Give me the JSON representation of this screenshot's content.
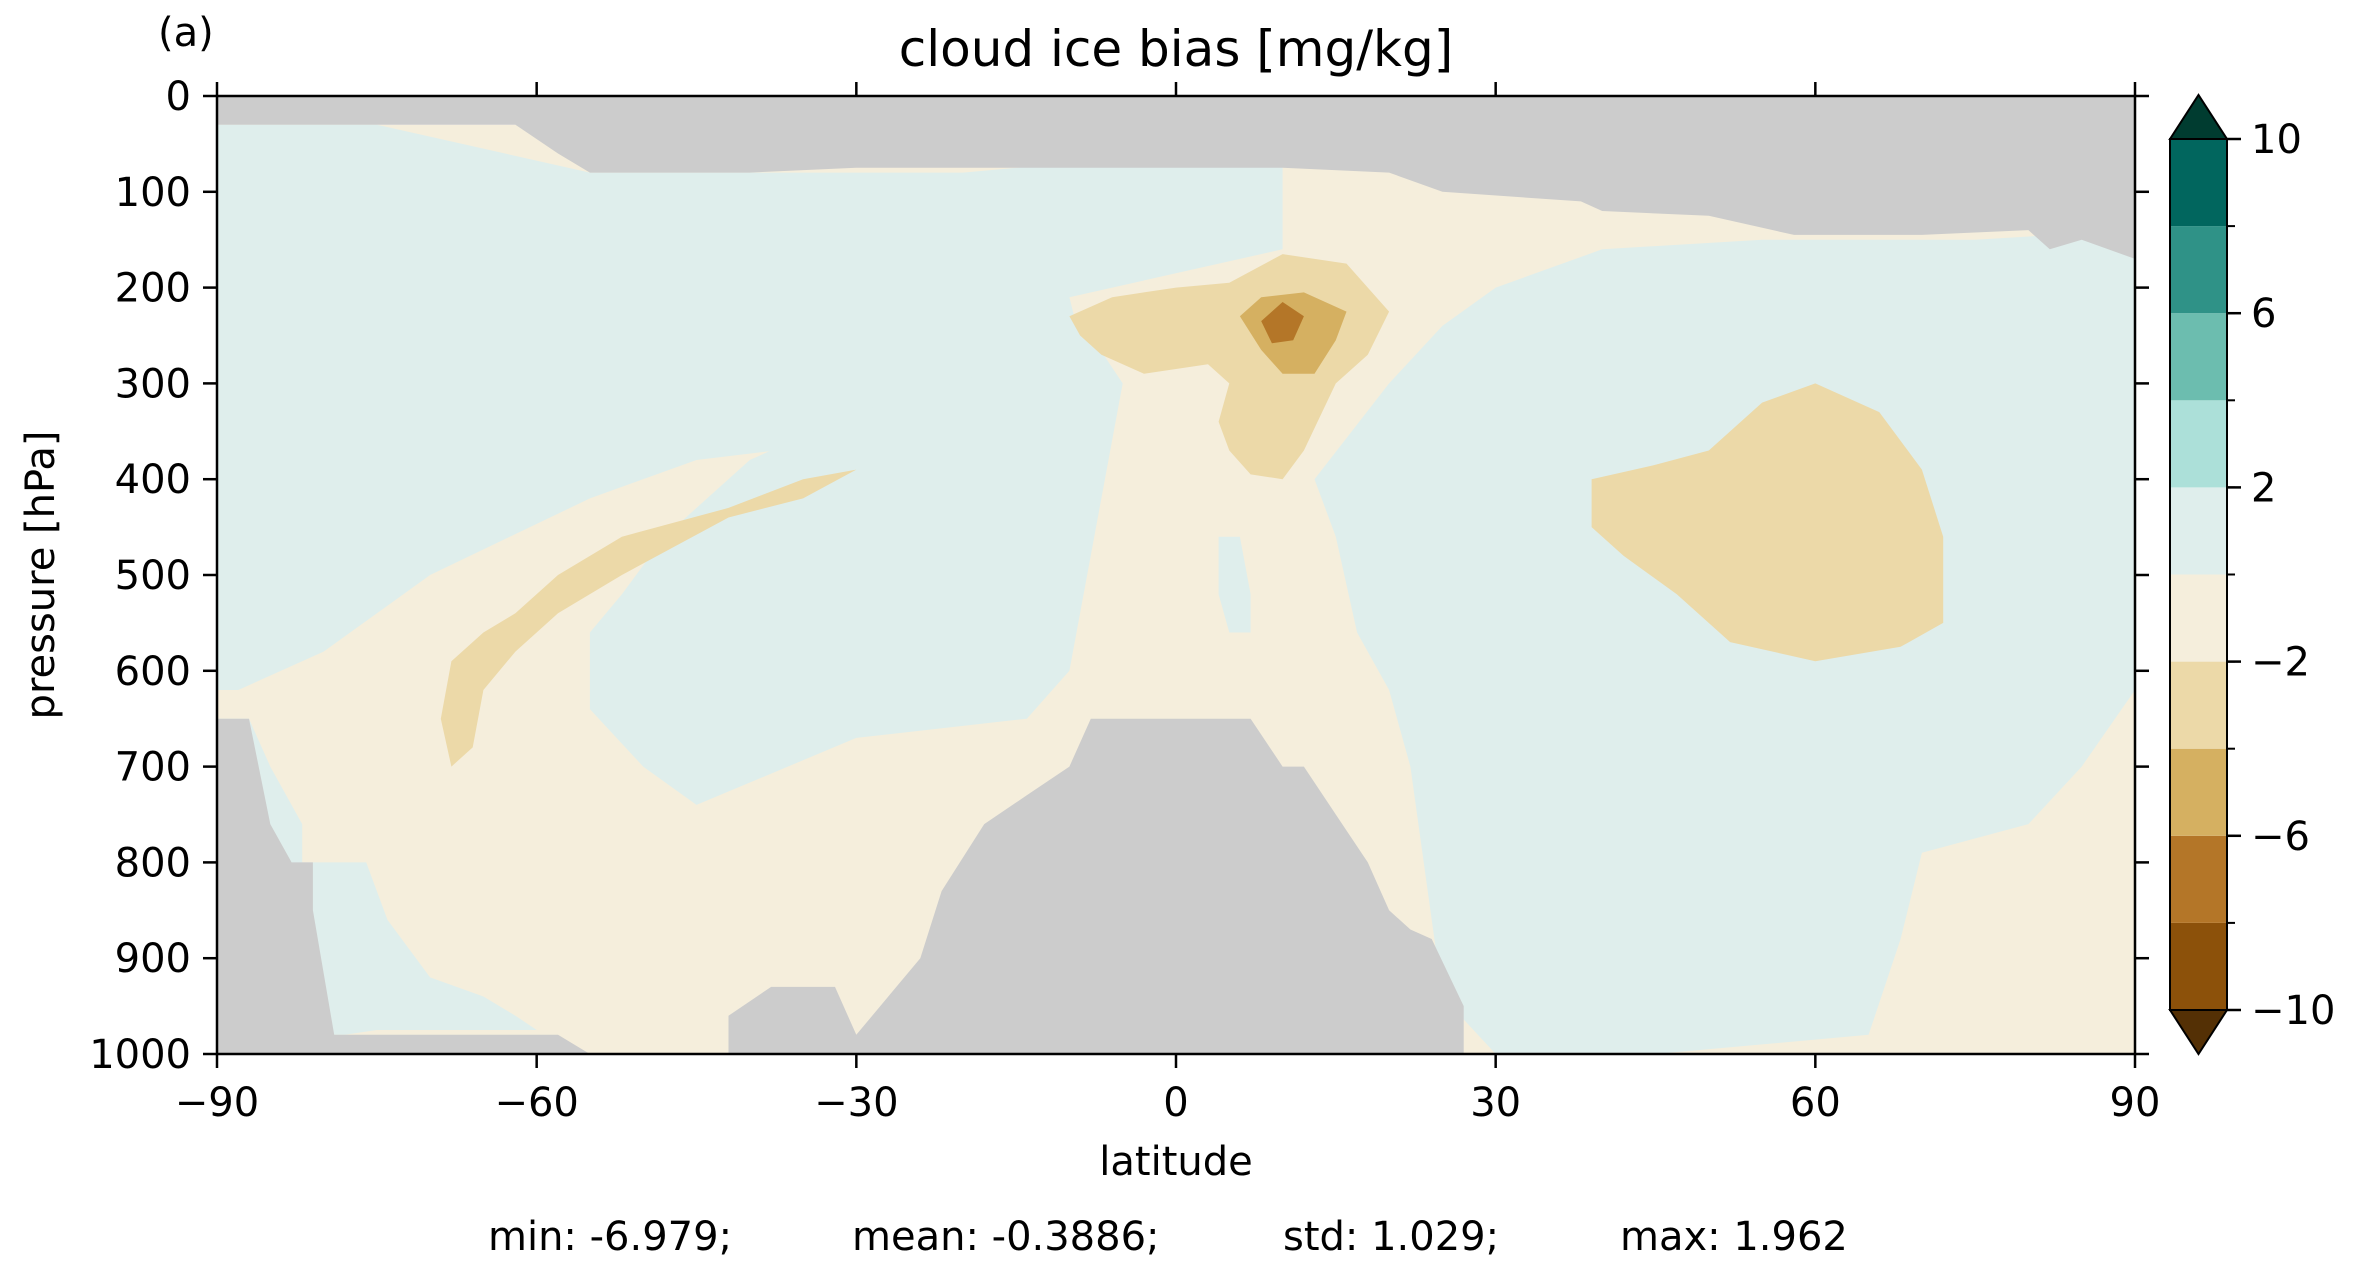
{
  "chart_data": {
    "type": "heatmap",
    "panel_label": "(a)",
    "title": "cloud ice bias [mg/kg]",
    "xlabel": "latitude",
    "ylabel": "pressure [hPa]",
    "xlim": [
      -90,
      90
    ],
    "ylim": [
      1000,
      0
    ],
    "x_ticks": [
      -90,
      -60,
      -30,
      0,
      30,
      60,
      90
    ],
    "x_tick_labels": [
      "−90",
      "−60",
      "−30",
      "0",
      "30",
      "60",
      "90"
    ],
    "y_ticks": [
      0,
      100,
      200,
      300,
      400,
      500,
      600,
      700,
      800,
      900,
      1000
    ],
    "y_tick_labels": [
      "0",
      "100",
      "200",
      "300",
      "400",
      "500",
      "600",
      "700",
      "800",
      "900",
      "1000"
    ],
    "grid": false,
    "colorbar": {
      "placement": "right",
      "extend": "both",
      "levels": [
        -10,
        -8,
        -6,
        -4,
        -2,
        0,
        2,
        4,
        6,
        8,
        10
      ],
      "tick_values": [
        -10,
        -6,
        -2,
        2,
        6,
        10
      ],
      "tick_labels": [
        "−10",
        "−6",
        "−2",
        "2",
        "6",
        "10"
      ],
      "colors": [
        "#543005",
        "#8c510a",
        "#b47628",
        "#d5b061",
        "#ecd9a8",
        "#f5eedc",
        "#dfeeec",
        "#ace0d9",
        "#6cbdaf",
        "#2f9287",
        "#01665e",
        "#003c30"
      ],
      "missing_color": "#cccccc"
    },
    "regions": [
      {
        "value_range": [
          -2,
          0
        ],
        "points": [
          [
            -90,
            30
          ],
          [
            90,
            30
          ],
          [
            90,
            1000
          ],
          [
            -90,
            1000
          ]
        ]
      },
      {
        "value_range": [
          0,
          2
        ],
        "points": [
          [
            -90,
            30
          ],
          [
            -75,
            30
          ],
          [
            -55,
            80
          ],
          [
            -20,
            80
          ],
          [
            -10,
            70
          ],
          [
            0,
            60
          ],
          [
            10,
            70
          ],
          [
            10,
            160
          ],
          [
            -10,
            210
          ],
          [
            -8,
            300
          ],
          [
            -30,
            360
          ],
          [
            -45,
            380
          ],
          [
            -55,
            420
          ],
          [
            -70,
            500
          ],
          [
            -80,
            580
          ],
          [
            -88,
            620
          ],
          [
            -90,
            620
          ]
        ]
      },
      {
        "value_range": [
          0,
          2
        ],
        "points": [
          [
            -90,
            650
          ],
          [
            -87,
            650
          ],
          [
            -85,
            700
          ],
          [
            -82,
            760
          ],
          [
            -82,
            800
          ],
          [
            -76,
            800
          ],
          [
            -74,
            860
          ],
          [
            -70,
            920
          ],
          [
            -65,
            940
          ],
          [
            -62,
            960
          ],
          [
            -60,
            975
          ],
          [
            -75,
            975
          ],
          [
            -78,
            980
          ],
          [
            -85,
            980
          ],
          [
            -90,
            980
          ]
        ]
      },
      {
        "value_range": [
          0,
          2
        ],
        "points": [
          [
            -45,
            740
          ],
          [
            -30,
            670
          ],
          [
            -14,
            650
          ],
          [
            -10,
            600
          ],
          [
            -5,
            300
          ],
          [
            -8,
            250
          ],
          [
            -10,
            240
          ],
          [
            -18,
            290
          ],
          [
            -30,
            330
          ],
          [
            -40,
            380
          ],
          [
            -48,
            460
          ],
          [
            -52,
            520
          ],
          [
            -55,
            560
          ],
          [
            -55,
            640
          ],
          [
            -50,
            700
          ]
        ]
      },
      {
        "value_range": [
          0,
          2
        ],
        "points": [
          [
            20,
            300
          ],
          [
            25,
            240
          ],
          [
            30,
            200
          ],
          [
            40,
            160
          ],
          [
            55,
            150
          ],
          [
            75,
            150
          ],
          [
            90,
            140
          ],
          [
            90,
            620
          ],
          [
            85,
            700
          ],
          [
            80,
            760
          ],
          [
            70,
            790
          ],
          [
            68,
            880
          ],
          [
            65,
            980
          ],
          [
            45,
            1000
          ],
          [
            30,
            1000
          ],
          [
            25,
            940
          ],
          [
            22,
            700
          ],
          [
            20,
            620
          ],
          [
            17,
            560
          ],
          [
            15,
            460
          ],
          [
            13,
            400
          ]
        ]
      },
      {
        "value_range": [
          0,
          2
        ],
        "points": [
          [
            4,
            460
          ],
          [
            6,
            460
          ],
          [
            7,
            520
          ],
          [
            7,
            560
          ],
          [
            5,
            560
          ],
          [
            4,
            520
          ]
        ]
      },
      {
        "value_range": [
          -4,
          -2
        ],
        "points": [
          [
            -69,
            650
          ],
          [
            -68,
            590
          ],
          [
            -65,
            560
          ],
          [
            -62,
            540
          ],
          [
            -58,
            500
          ],
          [
            -52,
            460
          ],
          [
            -42,
            430
          ],
          [
            -35,
            400
          ],
          [
            -30,
            390
          ],
          [
            -35,
            420
          ],
          [
            -42,
            440
          ],
          [
            -52,
            500
          ],
          [
            -58,
            540
          ],
          [
            -62,
            580
          ],
          [
            -65,
            620
          ],
          [
            -66,
            680
          ],
          [
            -68,
            700
          ]
        ]
      },
      {
        "value_range": [
          -4,
          -2
        ],
        "points": [
          [
            -10,
            230
          ],
          [
            -6,
            210
          ],
          [
            0,
            200
          ],
          [
            5,
            195
          ],
          [
            10,
            165
          ],
          [
            16,
            175
          ],
          [
            20,
            225
          ],
          [
            18,
            270
          ],
          [
            15,
            300
          ],
          [
            12,
            370
          ],
          [
            10,
            400
          ],
          [
            7,
            395
          ],
          [
            5,
            370
          ],
          [
            4,
            340
          ],
          [
            5,
            300
          ],
          [
            3,
            280
          ],
          [
            -3,
            290
          ],
          [
            -7,
            270
          ],
          [
            -9,
            250
          ]
        ]
      },
      {
        "value_range": [
          -4,
          -2
        ],
        "points": [
          [
            39,
            400
          ],
          [
            45,
            385
          ],
          [
            50,
            370
          ],
          [
            55,
            320
          ],
          [
            60,
            300
          ],
          [
            66,
            330
          ],
          [
            70,
            390
          ],
          [
            72,
            460
          ],
          [
            72,
            550
          ],
          [
            68,
            575
          ],
          [
            60,
            590
          ],
          [
            52,
            570
          ],
          [
            47,
            520
          ],
          [
            42,
            480
          ],
          [
            39,
            450
          ]
        ]
      },
      {
        "value_range": [
          -6,
          -4
        ],
        "points": [
          [
            6,
            230
          ],
          [
            8,
            210
          ],
          [
            12,
            205
          ],
          [
            16,
            225
          ],
          [
            15,
            255
          ],
          [
            13,
            290
          ],
          [
            10,
            290
          ],
          [
            8,
            265
          ]
        ]
      },
      {
        "value_range": [
          -8,
          -6
        ],
        "points": [
          [
            8,
            235
          ],
          [
            10,
            215
          ],
          [
            12,
            230
          ],
          [
            11,
            255
          ],
          [
            9,
            258
          ]
        ]
      },
      {
        "value_range": "missing",
        "points": [
          [
            -90,
            0
          ],
          [
            90,
            0
          ],
          [
            90,
            170
          ],
          [
            85,
            150
          ],
          [
            82,
            160
          ],
          [
            80,
            140
          ],
          [
            70,
            145
          ],
          [
            58,
            145
          ],
          [
            50,
            125
          ],
          [
            40,
            120
          ],
          [
            38,
            110
          ],
          [
            25,
            100
          ],
          [
            20,
            80
          ],
          [
            10,
            75
          ],
          [
            -30,
            75
          ],
          [
            -40,
            80
          ],
          [
            -55,
            80
          ],
          [
            -58,
            60
          ],
          [
            -62,
            30
          ],
          [
            -90,
            30
          ]
        ]
      },
      {
        "value_range": "missing",
        "points": [
          [
            -90,
            650
          ],
          [
            -87,
            650
          ],
          [
            -85,
            760
          ],
          [
            -83,
            800
          ],
          [
            -81,
            800
          ],
          [
            -81,
            850
          ],
          [
            -79,
            980
          ],
          [
            -70,
            980
          ],
          [
            -65,
            980
          ],
          [
            -58,
            980
          ],
          [
            -55,
            1000
          ],
          [
            -90,
            1000
          ]
        ]
      },
      {
        "value_range": "missing",
        "points": [
          [
            -42,
            1000
          ],
          [
            -42,
            960
          ],
          [
            -38,
            930
          ],
          [
            -32,
            930
          ],
          [
            -30,
            980
          ],
          [
            -27,
            940
          ],
          [
            -24,
            900
          ],
          [
            -22,
            830
          ],
          [
            -18,
            760
          ],
          [
            -14,
            730
          ],
          [
            -10,
            700
          ],
          [
            -8,
            650
          ],
          [
            7,
            650
          ],
          [
            10,
            700
          ],
          [
            12,
            700
          ],
          [
            15,
            750
          ],
          [
            18,
            800
          ],
          [
            20,
            850
          ],
          [
            22,
            870
          ],
          [
            24,
            880
          ],
          [
            27,
            950
          ],
          [
            27,
            1000
          ]
        ]
      }
    ]
  },
  "stats": {
    "min": "min: -6.979;",
    "mean": "mean: -0.3886;",
    "std": "std: 1.029;",
    "max": "max: 1.962"
  }
}
